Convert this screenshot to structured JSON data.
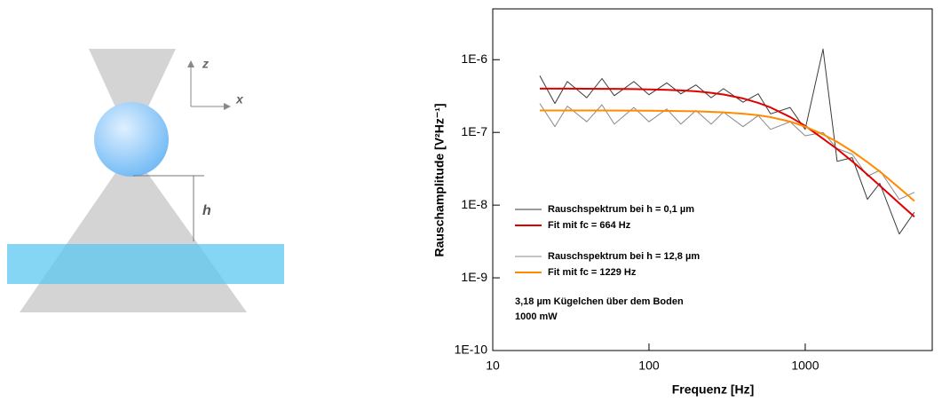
{
  "diagram": {
    "labels": {
      "z": "z",
      "x": "x",
      "h": "h"
    }
  },
  "chart_data": {
    "type": "line",
    "x_label": "Frequenz [Hz]",
    "y_label": "Rauschamplitude [V²Hz⁻¹]",
    "xlog": true,
    "ylog": true,
    "xlim": [
      10,
      6500
    ],
    "ylim": [
      1e-10,
      5e-06
    ],
    "xticks": [
      10,
      100,
      1000
    ],
    "yticks": [
      {
        "value": 1e-10,
        "label": "1E-10"
      },
      {
        "value": 1e-09,
        "label": "1E-9"
      },
      {
        "value": 1e-08,
        "label": "1E-8"
      },
      {
        "value": 1e-07,
        "label": "1E-7"
      },
      {
        "value": 1e-06,
        "label": "1E-6"
      }
    ],
    "legend": "lower left",
    "annotations": [
      "3,18 µm Kügelchen über dem Boden",
      "1000 mW"
    ],
    "series": [
      {
        "name": "Rauschspektrum bei h = 0,1 µm",
        "color": "#3a3a3a",
        "width": 1,
        "x": [
          20,
          25,
          30,
          40,
          50,
          60,
          80,
          100,
          130,
          160,
          200,
          250,
          300,
          400,
          500,
          600,
          800,
          1000,
          1300,
          1600,
          2000,
          2500,
          3000,
          4000,
          5000
        ],
        "values": [
          6e-07,
          2.5e-07,
          5e-07,
          3e-07,
          5.5e-07,
          3.2e-07,
          5e-07,
          3.3e-07,
          4.8e-07,
          3.4e-07,
          4.5e-07,
          3e-07,
          4e-07,
          2.6e-07,
          3.4e-07,
          1.8e-07,
          2.2e-07,
          1.1e-07,
          1.4e-06,
          4e-08,
          4.5e-08,
          1.2e-08,
          2e-08,
          4e-09,
          8e-09
        ]
      },
      {
        "name": "Fit mit fc = 664 Hz",
        "color": "#e00000",
        "width": 2,
        "x": [
          20,
          25,
          30,
          40,
          50,
          60,
          80,
          100,
          130,
          160,
          200,
          250,
          300,
          400,
          500,
          600,
          800,
          1000,
          1300,
          1600,
          2000,
          2500,
          3000,
          4000,
          5000
        ],
        "values": [
          4e-07,
          4e-07,
          4e-07,
          3.99e-07,
          3.98e-07,
          3.97e-07,
          3.94e-07,
          3.91e-07,
          3.85e-07,
          3.78e-07,
          3.67e-07,
          3.5e-07,
          3.32e-07,
          2.93e-07,
          2.55e-07,
          2.2e-07,
          1.63e-07,
          1.23e-07,
          8.2e-08,
          5.9e-08,
          4e-08,
          2.63e-08,
          1.86e-08,
          1.06e-08,
          6.9e-09
        ]
      },
      {
        "name": "Rauschspektrum bei h = 12,8 µm",
        "color": "#8a8a8a",
        "width": 1,
        "x": [
          20,
          25,
          30,
          40,
          50,
          60,
          80,
          100,
          130,
          160,
          200,
          250,
          300,
          400,
          500,
          600,
          800,
          1000,
          1300,
          1600,
          2000,
          2500,
          3000,
          4000,
          5000
        ],
        "values": [
          2.5e-07,
          1.2e-07,
          2.3e-07,
          1.4e-07,
          2.4e-07,
          1.3e-07,
          2.2e-07,
          1.4e-07,
          2.1e-07,
          1.3e-07,
          2e-07,
          1.3e-07,
          1.9e-07,
          1.2e-07,
          1.7e-07,
          1.1e-07,
          1.4e-07,
          9e-08,
          1e-07,
          6e-08,
          5e-08,
          2.5e-08,
          3e-08,
          1.2e-08,
          1.5e-08
        ]
      },
      {
        "name": "Fit mit fc = 1229 Hz",
        "color": "#ff8c00",
        "width": 2,
        "x": [
          20,
          50,
          100,
          200,
          300,
          400,
          500,
          600,
          800,
          1000,
          1300,
          1600,
          2000,
          2500,
          3000,
          4000,
          5000
        ],
        "values": [
          2e-07,
          2e-07,
          1.99e-07,
          1.95e-07,
          1.89e-07,
          1.81e-07,
          1.72e-07,
          1.62e-07,
          1.41e-07,
          1.2e-07,
          9.4e-08,
          7.4e-08,
          5.5e-08,
          3.9e-08,
          2.9e-08,
          1.72e-08,
          1.14e-08
        ]
      }
    ]
  }
}
